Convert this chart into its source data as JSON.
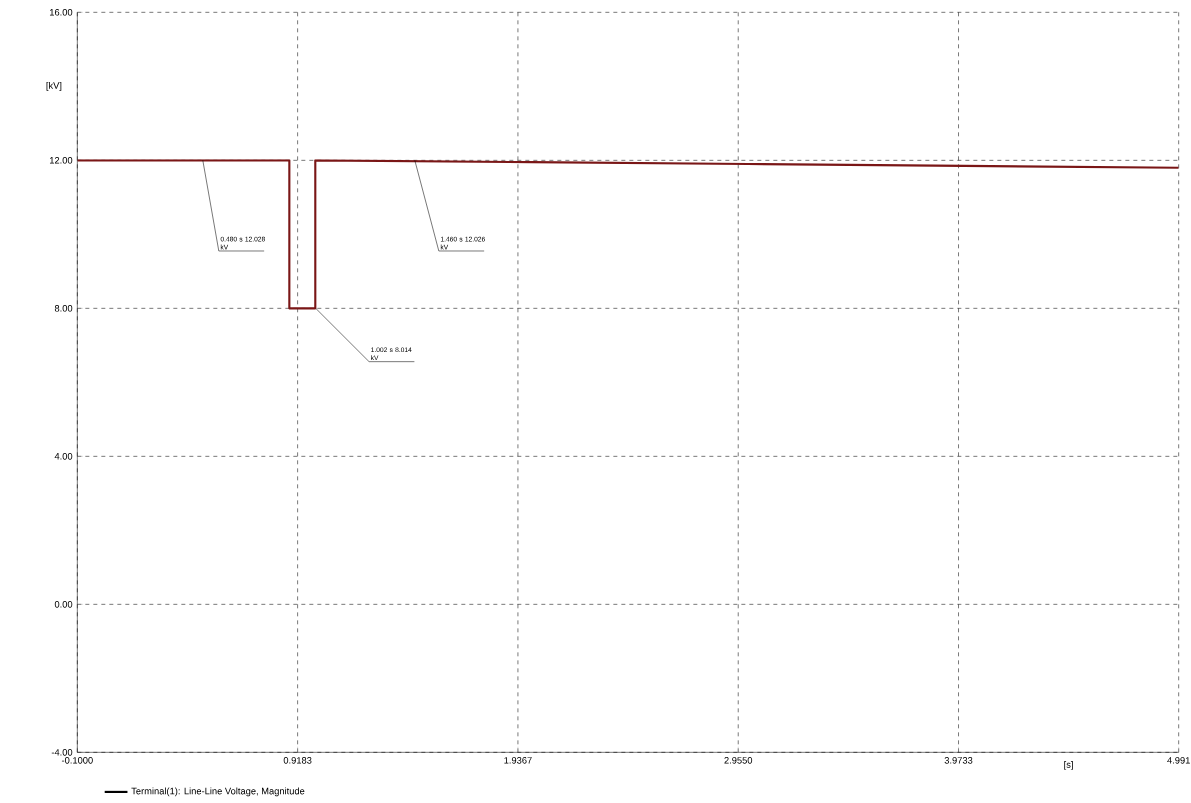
{
  "chart_data": {
    "type": "line",
    "xlabel": "[s]",
    "ylabel": "[kV]",
    "x": [
      -0.1,
      0.88,
      0.88,
      1.0,
      1.0,
      2.0,
      3.0,
      4.0,
      4.991
    ],
    "series": [
      {
        "name": "Terminal(1): Line-Line Voltage, Magnitude",
        "color": "#7a1616",
        "values": [
          12.0,
          12.0,
          8.0,
          8.0,
          12.0,
          11.95,
          11.9,
          11.85,
          11.8
        ]
      }
    ],
    "xlim": [
      -0.1,
      4.991
    ],
    "ylim": [
      -4,
      16
    ],
    "xticks": [
      {
        "value": -0.1,
        "label": "-0.1000"
      },
      {
        "value": 0.9183,
        "label": "0.9183"
      },
      {
        "value": 1.9367,
        "label": "1.9367"
      },
      {
        "value": 2.955,
        "label": "2.9550"
      },
      {
        "value": 3.9733,
        "label": "3.9733"
      },
      {
        "value": 4.991,
        "label": "4.991"
      }
    ],
    "yticks": [
      {
        "value": -4,
        "label": "-4.00"
      },
      {
        "value": 0,
        "label": "0.00"
      },
      {
        "value": 4,
        "label": "4.00"
      },
      {
        "value": 8,
        "label": "8.00"
      },
      {
        "value": 12,
        "label": "12.00"
      },
      {
        "value": 16,
        "label": "16.00"
      }
    ],
    "grid": true,
    "legend": "bottom left",
    "line_style": "solid",
    "marker": "none",
    "annotations": [
      {
        "text": "0.480 s 12.028 kV",
        "x": 0.48,
        "y": 12.0
      },
      {
        "text": "1.002 s 8.014 kV",
        "x": 1.002,
        "y": 8.0
      },
      {
        "text": "1.460 s 12.026 kV",
        "x": 1.46,
        "y": 12.0
      }
    ]
  }
}
